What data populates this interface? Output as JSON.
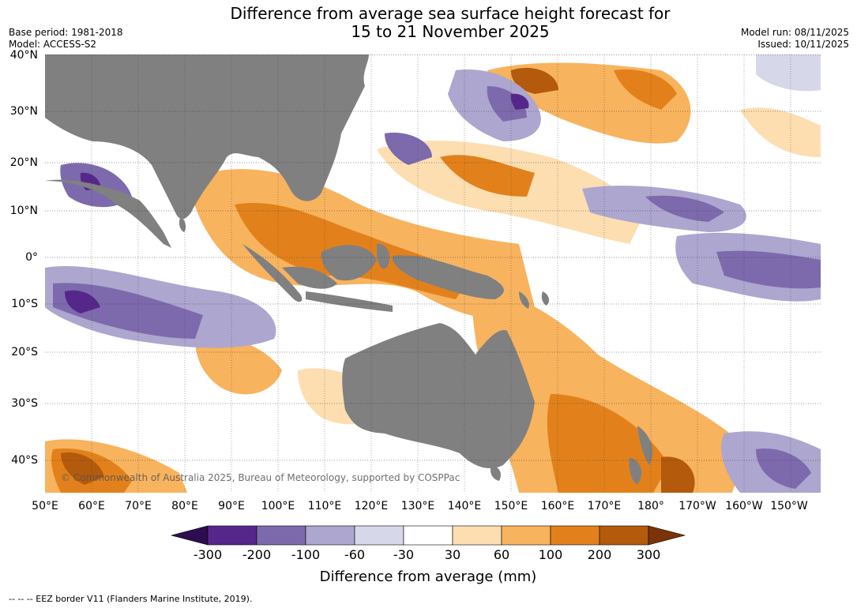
{
  "title": {
    "line1": "Difference from average sea surface height forecast for",
    "line2": "15 to 21 November 2025"
  },
  "meta": {
    "base_period": "Base period: 1981-2018",
    "model": "Model: ACCESS-S2",
    "model_run": "Model run: 08/11/2025",
    "issued": "Issued: 10/11/2025"
  },
  "map": {
    "lat_labels": [
      "40°N",
      "30°N",
      "20°N",
      "10°N",
      "0°",
      "10°S",
      "20°S",
      "30°S",
      "40°S"
    ],
    "lon_labels": [
      "50°E",
      "60°E",
      "70°E",
      "80°E",
      "90°E",
      "100°E",
      "110°E",
      "120°E",
      "130°E",
      "140°E",
      "150°E",
      "160°E",
      "170°E",
      "180°",
      "170°W",
      "160°W",
      "150°W"
    ],
    "copyright": "© Commonwealth of Australia 2025, Bureau of Meteorology, supported by COSPPac",
    "colors": {
      "land": "#808080",
      "ocean_neutral": "#ffffff",
      "grid": "#333333"
    }
  },
  "colorbar": {
    "ticks": [
      "-300",
      "-200",
      "-100",
      "-60",
      "-30",
      "30",
      "60",
      "100",
      "200",
      "300"
    ],
    "colors": [
      "#2d0d4f",
      "#56278a",
      "#7d6aad",
      "#ada6cf",
      "#d6d8ea",
      "#ffffff",
      "#fddeb1",
      "#f8b35e",
      "#e2811b",
      "#b45a0c",
      "#7a3407"
    ],
    "title": "Difference from average (mm)"
  },
  "footer": "-- -- -- EEZ border V11 (Flanders Marine Institute, 2019)."
}
